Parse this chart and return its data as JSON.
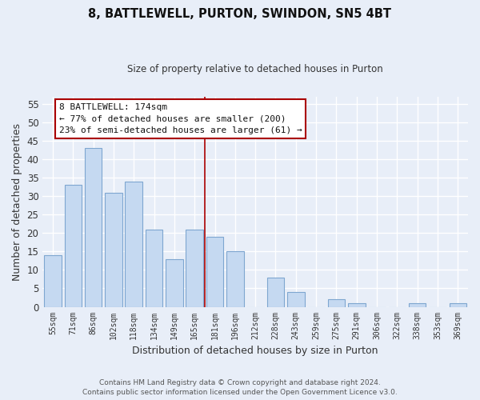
{
  "title1": "8, BATTLEWELL, PURTON, SWINDON, SN5 4BT",
  "title2": "Size of property relative to detached houses in Purton",
  "xlabel": "Distribution of detached houses by size in Purton",
  "ylabel": "Number of detached properties",
  "categories": [
    "55sqm",
    "71sqm",
    "86sqm",
    "102sqm",
    "118sqm",
    "134sqm",
    "149sqm",
    "165sqm",
    "181sqm",
    "196sqm",
    "212sqm",
    "228sqm",
    "243sqm",
    "259sqm",
    "275sqm",
    "291sqm",
    "306sqm",
    "322sqm",
    "338sqm",
    "353sqm",
    "369sqm"
  ],
  "values": [
    14,
    33,
    43,
    31,
    34,
    21,
    13,
    21,
    19,
    15,
    0,
    8,
    4,
    0,
    2,
    1,
    0,
    0,
    1,
    0,
    1
  ],
  "bar_color": "#c5d9f1",
  "bar_edge_color": "#7ea6d0",
  "vline_index": 7.5,
  "annotation_line1": "8 BATTLEWELL: 174sqm",
  "annotation_line2": "← 77% of detached houses are smaller (200)",
  "annotation_line3": "23% of semi-detached houses are larger (61) →",
  "ylim": [
    0,
    57
  ],
  "yticks": [
    0,
    5,
    10,
    15,
    20,
    25,
    30,
    35,
    40,
    45,
    50,
    55
  ],
  "footer1": "Contains HM Land Registry data © Crown copyright and database right 2024.",
  "footer2": "Contains public sector information licensed under the Open Government Licence v3.0.",
  "bg_color": "#e8eef8",
  "grid_color": "#ffffff",
  "annotation_box_facecolor": "#ffffff",
  "annotation_border_color": "#aa0000",
  "vline_color": "#aa0000"
}
